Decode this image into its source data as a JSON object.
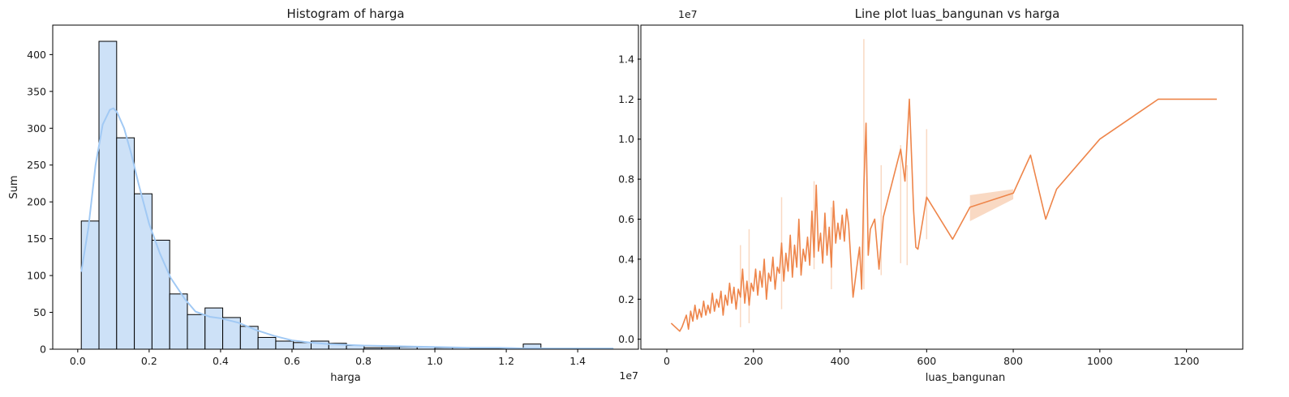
{
  "chart_data": [
    {
      "type": "bar",
      "title": "Histogram of harga",
      "xlabel": "harga",
      "ylabel": "Sum",
      "x_offset_label": "1e7",
      "xlim": [
        -700000,
        15700000
      ],
      "ylim": [
        0,
        440
      ],
      "x_ticks": [
        0,
        2000000,
        4000000,
        6000000,
        8000000,
        10000000,
        12000000,
        14000000
      ],
      "x_tick_labels": [
        "0.0",
        "0.2",
        "0.4",
        "0.6",
        "0.8",
        "1.0",
        "1.2",
        "1.4"
      ],
      "y_ticks": [
        0,
        50,
        100,
        150,
        200,
        250,
        300,
        350,
        400
      ],
      "y_tick_labels": [
        "0",
        "50",
        "100",
        "150",
        "200",
        "250",
        "300",
        "350",
        "400"
      ],
      "bin_start": 100000,
      "bin_width": 495000,
      "values": [
        174,
        418,
        287,
        211,
        148,
        75,
        47,
        56,
        43,
        31,
        16,
        11,
        9,
        11,
        8,
        5,
        2,
        2,
        3,
        3,
        2,
        2,
        1,
        1,
        1,
        7,
        0,
        1,
        0,
        1
      ],
      "kde": {
        "x": [
          100000,
          300000,
          500000,
          700000,
          900000,
          1000000,
          1100000,
          1300000,
          1500000,
          1700000,
          2000000,
          2300000,
          2600000,
          3000000,
          3300000,
          3700000,
          4000000,
          4500000,
          5000000,
          5500000,
          6000000,
          6500000,
          7000000,
          8000000,
          9000000,
          10000000,
          11000000,
          11800000,
          12500000,
          13500000,
          15000000
        ],
        "y": [
          105,
          165,
          250,
          305,
          325,
          327,
          322,
          300,
          265,
          225,
          170,
          130,
          97,
          68,
          51,
          44,
          42,
          36,
          26,
          18,
          12,
          9,
          7,
          5,
          4,
          3,
          2,
          2,
          1,
          1,
          1
        ]
      },
      "colors": {
        "bar_fill": "#cde1f7",
        "bar_edge": "#000000",
        "kde": "#a1c9f4"
      }
    },
    {
      "type": "line",
      "title": "Line plot luas_bangunan vs harga",
      "xlabel": "luas_bangunan",
      "ylabel": "",
      "y_offset_label": "1e7",
      "xlim": [
        -60,
        1330
      ],
      "ylim": [
        -500000,
        15700000
      ],
      "x_ticks": [
        0,
        200,
        400,
        600,
        800,
        1000,
        1200
      ],
      "x_tick_labels": [
        "0",
        "200",
        "400",
        "600",
        "800",
        "1000",
        "1200"
      ],
      "y_ticks": [
        0,
        2000000,
        4000000,
        6000000,
        8000000,
        10000000,
        12000000,
        14000000
      ],
      "y_tick_labels": [
        "0.0",
        "0.2",
        "0.4",
        "0.6",
        "0.8",
        "1.0",
        "1.2",
        "1.4"
      ],
      "x": [
        10,
        30,
        35,
        45,
        50,
        55,
        60,
        65,
        70,
        75,
        80,
        85,
        90,
        95,
        100,
        105,
        110,
        115,
        120,
        125,
        130,
        135,
        140,
        145,
        150,
        155,
        160,
        165,
        170,
        175,
        180,
        185,
        190,
        195,
        200,
        205,
        210,
        215,
        220,
        225,
        230,
        235,
        240,
        245,
        250,
        255,
        260,
        265,
        270,
        275,
        280,
        285,
        290,
        295,
        300,
        305,
        310,
        315,
        320,
        325,
        330,
        335,
        340,
        345,
        350,
        355,
        360,
        365,
        370,
        375,
        380,
        385,
        390,
        395,
        400,
        405,
        410,
        415,
        420,
        430,
        440,
        445,
        450,
        455,
        460,
        465,
        470,
        480,
        490,
        500,
        540,
        550,
        560,
        570,
        575,
        580,
        600,
        660,
        700,
        800,
        840,
        875,
        900,
        1000,
        1135,
        1270
      ],
      "y": [
        800000,
        400000,
        600000,
        1200000,
        500000,
        1400000,
        900000,
        1700000,
        1000000,
        1500000,
        1100000,
        1900000,
        1200000,
        1700000,
        1300000,
        2300000,
        1400000,
        2000000,
        1600000,
        2400000,
        1200000,
        2200000,
        1700000,
        2800000,
        1800000,
        2600000,
        1500000,
        2500000,
        2100000,
        3500000,
        1800000,
        2900000,
        1700000,
        2800000,
        2400000,
        3500000,
        2200000,
        3400000,
        2600000,
        4000000,
        2000000,
        3300000,
        2900000,
        4100000,
        2500000,
        3600000,
        3300000,
        4800000,
        2900000,
        4300000,
        3400000,
        5200000,
        3100000,
        4700000,
        3600000,
        6000000,
        3200000,
        4500000,
        3900000,
        5100000,
        3700000,
        6400000,
        4100000,
        7700000,
        4400000,
        5300000,
        3800000,
        6300000,
        4200000,
        5600000,
        3600000,
        6900000,
        4800000,
        5800000,
        5000000,
        6200000,
        4900000,
        6500000,
        5700000,
        2100000,
        3800000,
        4600000,
        2500000,
        7600000,
        10800000,
        4200000,
        5500000,
        6000000,
        3500000,
        6100000,
        9500000,
        7900000,
        12000000,
        6400000,
        4600000,
        4500000,
        7100000,
        5000000,
        6600000,
        7300000,
        9200000,
        6000000,
        7500000,
        10000000,
        12000000,
        12000000
      ],
      "band": {
        "x": [
          700,
          800
        ],
        "lower": [
          5900000,
          7000000
        ],
        "upper": [
          7200000,
          7500000
        ]
      },
      "spikes": [
        {
          "x": 455,
          "low": 2500000,
          "high": 15000000
        },
        {
          "x": 540,
          "low": 3800000,
          "high": 9700000
        },
        {
          "x": 555,
          "low": 3700000,
          "high": 8700000
        },
        {
          "x": 600,
          "low": 5000000,
          "high": 10500000
        },
        {
          "x": 495,
          "low": 3200000,
          "high": 8700000
        },
        {
          "x": 340,
          "low": 3500000,
          "high": 7900000
        },
        {
          "x": 265,
          "low": 1500000,
          "high": 7100000
        },
        {
          "x": 190,
          "low": 800000,
          "high": 5500000
        },
        {
          "x": 170,
          "low": 600000,
          "high": 4700000
        },
        {
          "x": 380,
          "low": 2500000,
          "high": 6600000
        }
      ],
      "colors": {
        "line": "#ee854a",
        "band": "#f9d9c3"
      }
    }
  ]
}
